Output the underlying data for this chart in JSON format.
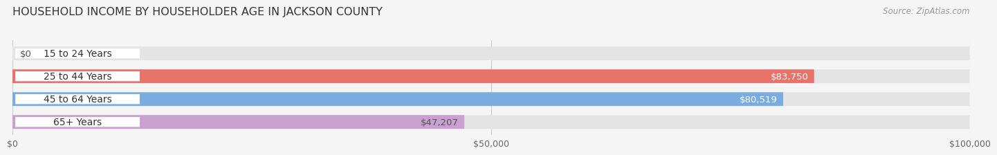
{
  "title": "HOUSEHOLD INCOME BY HOUSEHOLDER AGE IN JACKSON COUNTY",
  "source": "Source: ZipAtlas.com",
  "categories": [
    "15 to 24 Years",
    "25 to 44 Years",
    "45 to 64 Years",
    "65+ Years"
  ],
  "values": [
    0,
    83750,
    80519,
    47207
  ],
  "bar_colors": [
    "#f5c897",
    "#e8736a",
    "#7aace0",
    "#c9a0d0"
  ],
  "label_colors": [
    "#555555",
    "#ffffff",
    "#ffffff",
    "#555555"
  ],
  "bar_bg_color": "#e4e4e4",
  "xlim": [
    0,
    100000
  ],
  "xticks": [
    0,
    50000,
    100000
  ],
  "xtick_labels": [
    "$0",
    "$50,000",
    "$100,000"
  ],
  "title_fontsize": 11.5,
  "label_fontsize": 10,
  "value_fontsize": 9.5,
  "source_fontsize": 8.5,
  "bar_height": 0.6,
  "background_color": "#f5f5f5"
}
